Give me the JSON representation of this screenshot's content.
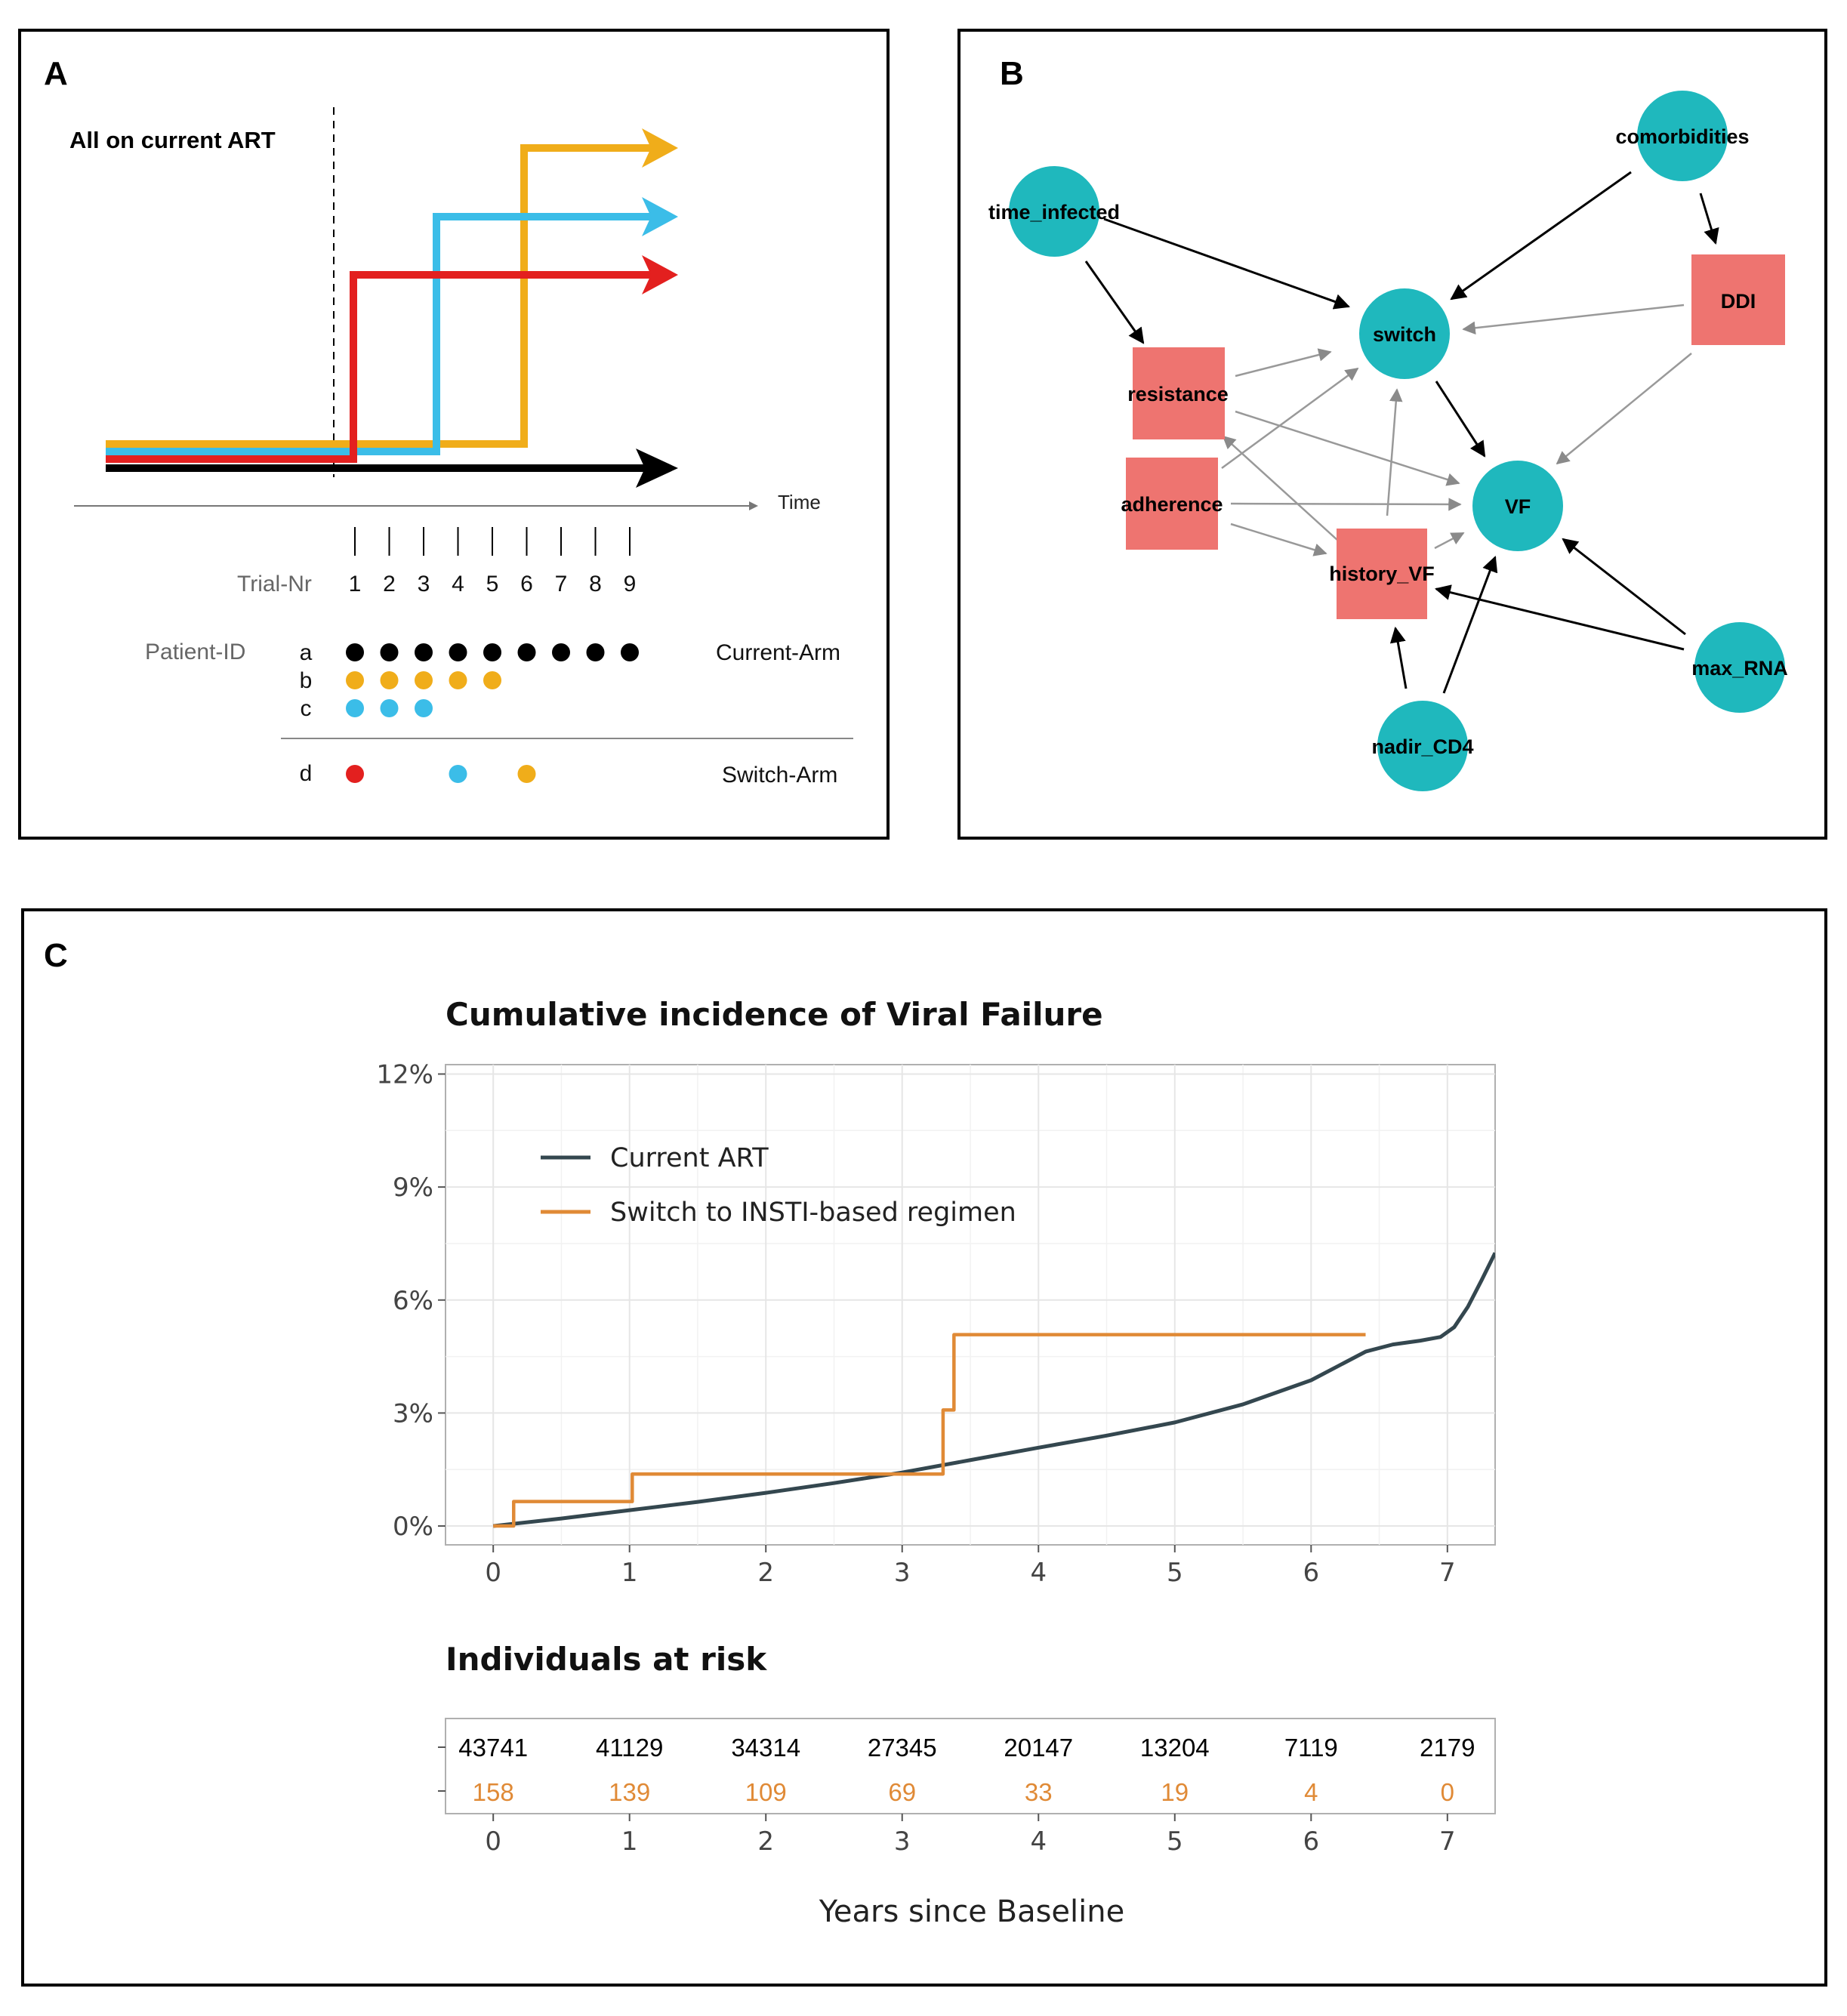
{
  "panel_a": {
    "letter": "A",
    "header": "All on current ART",
    "time_label": "Time",
    "trial_label": "Trial-Nr",
    "trials": [
      "1",
      "2",
      "3",
      "4",
      "5",
      "6",
      "7",
      "8",
      "9"
    ],
    "patient_label": "Patient-ID",
    "patients": [
      {
        "id": "a",
        "count": 9,
        "color": "#000000"
      },
      {
        "id": "b",
        "count": 5,
        "color": "#f0ad1a"
      },
      {
        "id": "c",
        "count": 3,
        "color": "#3bbde8"
      }
    ],
    "switch_patient": {
      "id": "d",
      "trials": [
        1,
        4,
        6
      ],
      "colors": [
        "#e3201f",
        "#3bbde8",
        "#f0ad1a"
      ]
    },
    "current_arm_label": "Current-Arm",
    "switch_arm_label": "Switch-Arm",
    "switch_lines": [
      {
        "color": "#e3201f",
        "switch_trial": 1
      },
      {
        "color": "#3bbde8",
        "switch_trial": 3.5
      },
      {
        "color": "#f0ad1a",
        "switch_trial": 6
      }
    ]
  },
  "panel_b": {
    "letter": "B",
    "nodes": [
      {
        "id": "time_infected",
        "label": "time_infected",
        "shape": "circle"
      },
      {
        "id": "comorbidities",
        "label": "comorbidities",
        "shape": "circle"
      },
      {
        "id": "switch",
        "label": "switch",
        "shape": "circle"
      },
      {
        "id": "DDI",
        "label": "DDI",
        "shape": "square"
      },
      {
        "id": "resistance",
        "label": "resistance",
        "shape": "square"
      },
      {
        "id": "adherence",
        "label": "adherence",
        "shape": "square"
      },
      {
        "id": "VF",
        "label": "VF",
        "shape": "circle"
      },
      {
        "id": "history_VF",
        "label": "history_VF",
        "shape": "square"
      },
      {
        "id": "max_RNA",
        "label": "max_RNA",
        "shape": "circle"
      },
      {
        "id": "nadir_CD4",
        "label": "nadir_CD4",
        "shape": "circle"
      }
    ],
    "colors": {
      "circle": "#1fb8bd",
      "square": "#ee7470",
      "edge_dark": "#000000",
      "edge_light": "#999999"
    }
  },
  "panel_c": {
    "letter": "C",
    "title": "Cumulative incidence of Viral Failure",
    "risk_title": "Individuals at risk",
    "xlabel": "Years since Baseline"
  },
  "chart_data": {
    "type": "line",
    "title": "Cumulative incidence of Viral Failure",
    "xlabel": "Years since Baseline",
    "ylabel": "",
    "xlim": [
      -0.35,
      7.35
    ],
    "ylim": [
      -0.005,
      0.1225
    ],
    "x_ticks": [
      0,
      1,
      2,
      3,
      4,
      5,
      6,
      7
    ],
    "y_ticks": [
      0,
      0.03,
      0.06,
      0.09,
      0.12
    ],
    "y_tick_labels": [
      "0%",
      "3%",
      "6%",
      "9%",
      "12%"
    ],
    "grid": true,
    "legend": "top-left",
    "series": [
      {
        "name": "Current ART",
        "color": "#34474f",
        "step": false,
        "x": [
          0,
          0.5,
          1,
          1.5,
          2,
          2.5,
          3,
          3.5,
          4,
          4.5,
          5,
          5.5,
          6,
          6.2,
          6.4,
          6.6,
          6.8,
          6.95,
          7.05,
          7.15,
          7.25,
          7.35
        ],
        "y": [
          0,
          0.002,
          0.0042,
          0.0064,
          0.0088,
          0.0114,
          0.0142,
          0.0175,
          0.0208,
          0.024,
          0.0275,
          0.0323,
          0.0387,
          0.0425,
          0.0463,
          0.0482,
          0.0492,
          0.0502,
          0.0528,
          0.0582,
          0.0652,
          0.0725
        ]
      },
      {
        "name": "Switch to INSTI-based regimen",
        "color": "#e08a36",
        "step": true,
        "x": [
          0,
          0.15,
          1.02,
          3.3,
          3.38,
          6.4
        ],
        "y": [
          0,
          0.0065,
          0.0138,
          0.0308,
          0.0508,
          0.0508
        ]
      }
    ],
    "risk_table": {
      "times": [
        0,
        1,
        2,
        3,
        4,
        5,
        6,
        7
      ],
      "rows": [
        {
          "name": "Current ART",
          "color": "#000000",
          "values": [
            "43741",
            "41129",
            "34314",
            "27345",
            "20147",
            "13204",
            "7119",
            "2179"
          ]
        },
        {
          "name": "Switch to INSTI-based regimen",
          "color": "#e08a36",
          "values": [
            "158",
            "139",
            "109",
            "69",
            "33",
            "19",
            "4",
            "0"
          ]
        }
      ]
    }
  }
}
